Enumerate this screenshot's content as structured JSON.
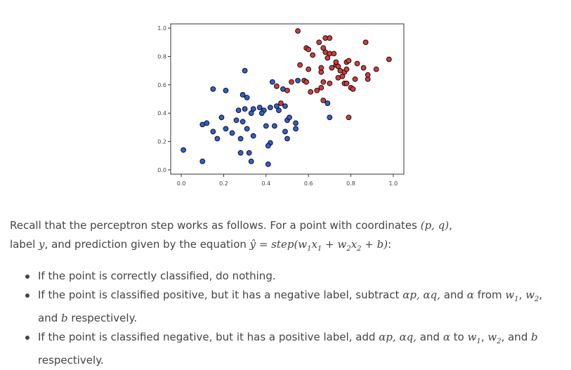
{
  "chart_data": {
    "type": "scatter",
    "title": "",
    "xlabel": "",
    "ylabel": "",
    "xlim": [
      -0.05,
      1.05
    ],
    "ylim": [
      -0.03,
      1.03
    ],
    "xticks": [
      "0.0",
      "0.2",
      "0.4",
      "0.6",
      "0.8",
      "1.0"
    ],
    "yticks": [
      "0.0",
      "0.2",
      "0.4",
      "0.6",
      "0.8",
      "1.0"
    ],
    "grid": false,
    "legend": "none",
    "series": [
      {
        "color": "#2f5fd0",
        "points": [
          [
            0.01,
            0.14
          ],
          [
            0.1,
            0.06
          ],
          [
            0.1,
            0.32
          ],
          [
            0.12,
            0.33
          ],
          [
            0.15,
            0.27
          ],
          [
            0.17,
            0.22
          ],
          [
            0.15,
            0.57
          ],
          [
            0.21,
            0.56
          ],
          [
            0.19,
            0.37
          ],
          [
            0.21,
            0.29
          ],
          [
            0.24,
            0.26
          ],
          [
            0.26,
            0.35
          ],
          [
            0.27,
            0.42
          ],
          [
            0.29,
            0.34
          ],
          [
            0.28,
            0.22
          ],
          [
            0.31,
            0.29
          ],
          [
            0.3,
            0.43
          ],
          [
            0.29,
            0.53
          ],
          [
            0.31,
            0.51
          ],
          [
            0.3,
            0.7
          ],
          [
            0.33,
            0.4
          ],
          [
            0.34,
            0.43
          ],
          [
            0.34,
            0.24
          ],
          [
            0.28,
            0.12
          ],
          [
            0.32,
            0.12
          ],
          [
            0.33,
            0.06
          ],
          [
            0.37,
            0.44
          ],
          [
            0.39,
            0.42
          ],
          [
            0.38,
            0.4
          ],
          [
            0.42,
            0.44
          ],
          [
            0.4,
            0.31
          ],
          [
            0.44,
            0.31
          ],
          [
            0.42,
            0.19
          ],
          [
            0.41,
            0.17
          ],
          [
            0.41,
            0.04
          ],
          [
            0.43,
            0.62
          ],
          [
            0.46,
            0.42
          ],
          [
            0.45,
            0.45
          ],
          [
            0.49,
            0.45
          ],
          [
            0.48,
            0.57
          ],
          [
            0.5,
            0.35
          ],
          [
            0.49,
            0.27
          ],
          [
            0.5,
            0.22
          ],
          [
            0.51,
            0.37
          ],
          [
            0.54,
            0.33
          ],
          [
            0.54,
            0.29
          ],
          [
            0.55,
            0.63
          ],
          [
            0.69,
            0.47
          ],
          [
            0.7,
            0.37
          ]
        ]
      },
      {
        "color": "#d63a3a",
        "points": [
          [
            0.45,
            0.59
          ],
          [
            0.47,
            0.47
          ],
          [
            0.5,
            0.56
          ],
          [
            0.52,
            0.62
          ],
          [
            0.55,
            0.98
          ],
          [
            0.56,
            0.74
          ],
          [
            0.58,
            0.63
          ],
          [
            0.59,
            0.62
          ],
          [
            0.59,
            0.86
          ],
          [
            0.6,
            0.85
          ],
          [
            0.6,
            0.71
          ],
          [
            0.61,
            0.55
          ],
          [
            0.62,
            0.81
          ],
          [
            0.64,
            0.56
          ],
          [
            0.65,
            0.9
          ],
          [
            0.66,
            0.69
          ],
          [
            0.66,
            0.58
          ],
          [
            0.66,
            0.72
          ],
          [
            0.67,
            0.49
          ],
          [
            0.67,
            0.86
          ],
          [
            0.67,
            0.62
          ],
          [
            0.68,
            0.93
          ],
          [
            0.68,
            0.83
          ],
          [
            0.69,
            0.79
          ],
          [
            0.7,
            0.82
          ],
          [
            0.7,
            0.61
          ],
          [
            0.7,
            0.93
          ],
          [
            0.71,
            0.72
          ],
          [
            0.72,
            0.82
          ],
          [
            0.73,
            0.74
          ],
          [
            0.73,
            0.76
          ],
          [
            0.74,
            0.73
          ],
          [
            0.74,
            0.65
          ],
          [
            0.75,
            0.7
          ],
          [
            0.76,
            0.66
          ],
          [
            0.77,
            0.69
          ],
          [
            0.77,
            0.61
          ],
          [
            0.78,
            0.71
          ],
          [
            0.78,
            0.76
          ],
          [
            0.78,
            0.61
          ],
          [
            0.79,
            0.77
          ],
          [
            0.79,
            0.37
          ],
          [
            0.8,
            0.58
          ],
          [
            0.81,
            0.57
          ],
          [
            0.82,
            0.64
          ],
          [
            0.83,
            0.75
          ],
          [
            0.86,
            0.72
          ],
          [
            0.87,
            0.9
          ],
          [
            0.88,
            0.64
          ],
          [
            0.88,
            0.67
          ],
          [
            0.92,
            0.71
          ],
          [
            0.98,
            0.78
          ]
        ]
      }
    ]
  },
  "text": {
    "intro_1a": "Recall that the perceptron step works as follows. For a point with coordinates ",
    "math_pq": "(p, q)",
    "intro_1b": ",",
    "intro_2a": "label ",
    "math_y": "y",
    "intro_2b": ", and prediction given by the equation ",
    "math_yhat": "ŷ = step(w",
    "sub_1": "1",
    "math_x1": "x",
    "sub_1b": "1",
    "math_plus1": " + w",
    "sub_2": "2",
    "math_x2": "x",
    "sub_2b": "2",
    "math_plusb": " + b)",
    "intro_2c": ":"
  },
  "bullets": [
    {
      "a": "If the point is correctly classified, do nothing."
    },
    {
      "a": "If the point is classified positive, but it has a negative label, subtract ",
      "m1": "αp, αq,",
      "b": " and ",
      "m2": "α",
      "c": " from ",
      "m3": "w",
      "s3": "1",
      "d": ", ",
      "m4": "w",
      "s4": "2",
      "e": ",",
      "f": "and ",
      "m5": "b",
      "g": " respectively."
    },
    {
      "a": "If the point is classified negative, but it has a positive label, add ",
      "m1": "αp, αq,",
      "b": " and ",
      "m2": "α",
      "c": " to ",
      "m3": "w",
      "s3": "1",
      "d": ", ",
      "m4": "w",
      "s4": "2",
      "e": ", and ",
      "m5": "b",
      "f": "respectively."
    }
  ]
}
